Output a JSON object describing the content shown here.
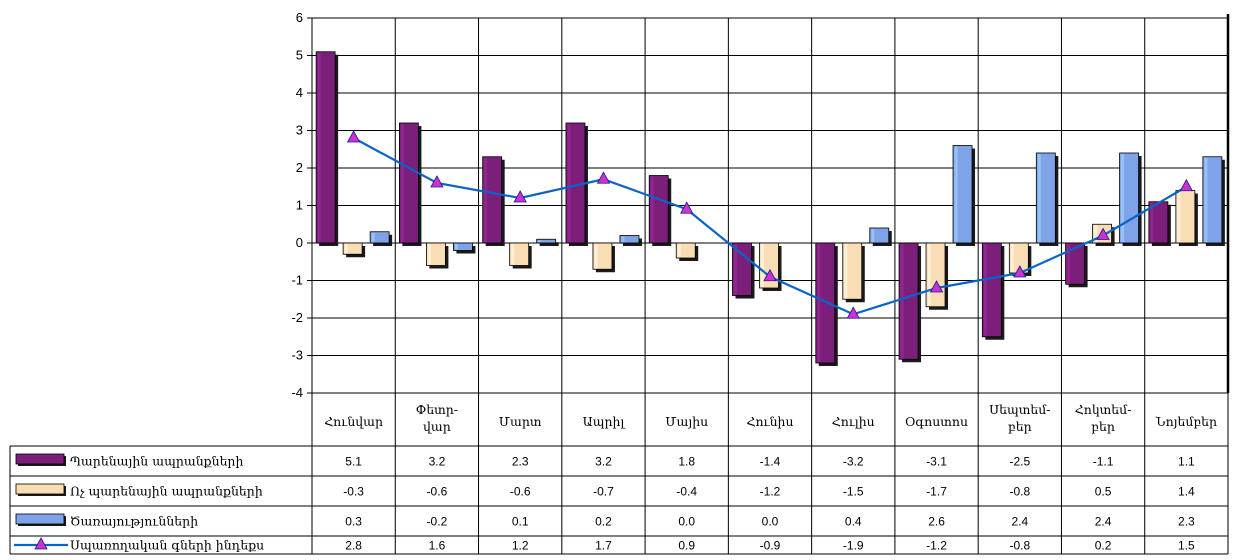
{
  "chart_data": {
    "type": "bar",
    "categories": [
      [
        "Հունվար"
      ],
      [
        "Փետր-",
        "վար"
      ],
      [
        "Մարտ"
      ],
      [
        "Ապրիլ"
      ],
      [
        "Մայիս"
      ],
      [
        "Հունիս"
      ],
      [
        "Հուլիս"
      ],
      [
        "Օգոստոս"
      ],
      [
        "Սեպտեմ-",
        "բեր"
      ],
      [
        "Հոկտեմ-",
        "բեր"
      ],
      [
        "Նոյեմբեր"
      ]
    ],
    "ylim": [
      -4,
      6
    ],
    "yticks": [
      6,
      5,
      4,
      3,
      2,
      1,
      0,
      -1,
      -2,
      -3,
      -4
    ],
    "grid": true,
    "legend_position": "bottom data table",
    "series": [
      {
        "name": "Պարենային ապրանքների",
        "kind": "bar",
        "color": "#7B1F7A",
        "values": [
          5.1,
          3.2,
          2.3,
          3.2,
          1.8,
          -1.4,
          -3.2,
          -3.1,
          -2.5,
          -1.1,
          1.1
        ],
        "labels": [
          "5.1",
          "3.2",
          "2.3",
          "3.2",
          "1.8",
          "-1.4",
          "-3.2",
          "-3.1",
          "-2.5",
          "-1.1",
          "1.1"
        ]
      },
      {
        "name": "Ոչ պարենային ապրանքների",
        "kind": "bar",
        "color": "#F9DDB4",
        "values": [
          -0.3,
          -0.6,
          -0.6,
          -0.7,
          -0.4,
          -1.2,
          -1.5,
          -1.7,
          -0.8,
          0.5,
          1.4
        ],
        "labels": [
          "-0.3",
          "-0.6",
          "-0.6",
          "-0.7",
          "-0.4",
          "-1.2",
          "-1.5",
          "-1.7",
          "-0.8",
          "0.5",
          "1.4"
        ]
      },
      {
        "name": "Ծառայությունների",
        "kind": "bar",
        "color": "#7FA3E8",
        "values": [
          0.3,
          -0.2,
          0.1,
          0.2,
          0.0,
          0.0,
          0.4,
          2.6,
          2.4,
          2.4,
          2.3
        ],
        "labels": [
          "0.3",
          "-0.2",
          "0.1",
          "0.2",
          "0.0",
          "0.0",
          "0.4",
          "2.6",
          "2.4",
          "2.4",
          "2.3"
        ]
      },
      {
        "name": "Սպառողական գների ինդեքս",
        "kind": "line",
        "color": "#0A64C8",
        "marker_color": "#CC33CC",
        "values": [
          2.8,
          1.6,
          1.2,
          1.7,
          0.9,
          -0.9,
          -1.9,
          -1.2,
          -0.8,
          0.2,
          1.5
        ],
        "labels": [
          "2.8",
          "1.6",
          "1.2",
          "1.7",
          "0.9",
          "-0.9",
          "-1.9",
          "-1.2",
          "-0.8",
          "0.2",
          "1.5"
        ]
      }
    ]
  }
}
